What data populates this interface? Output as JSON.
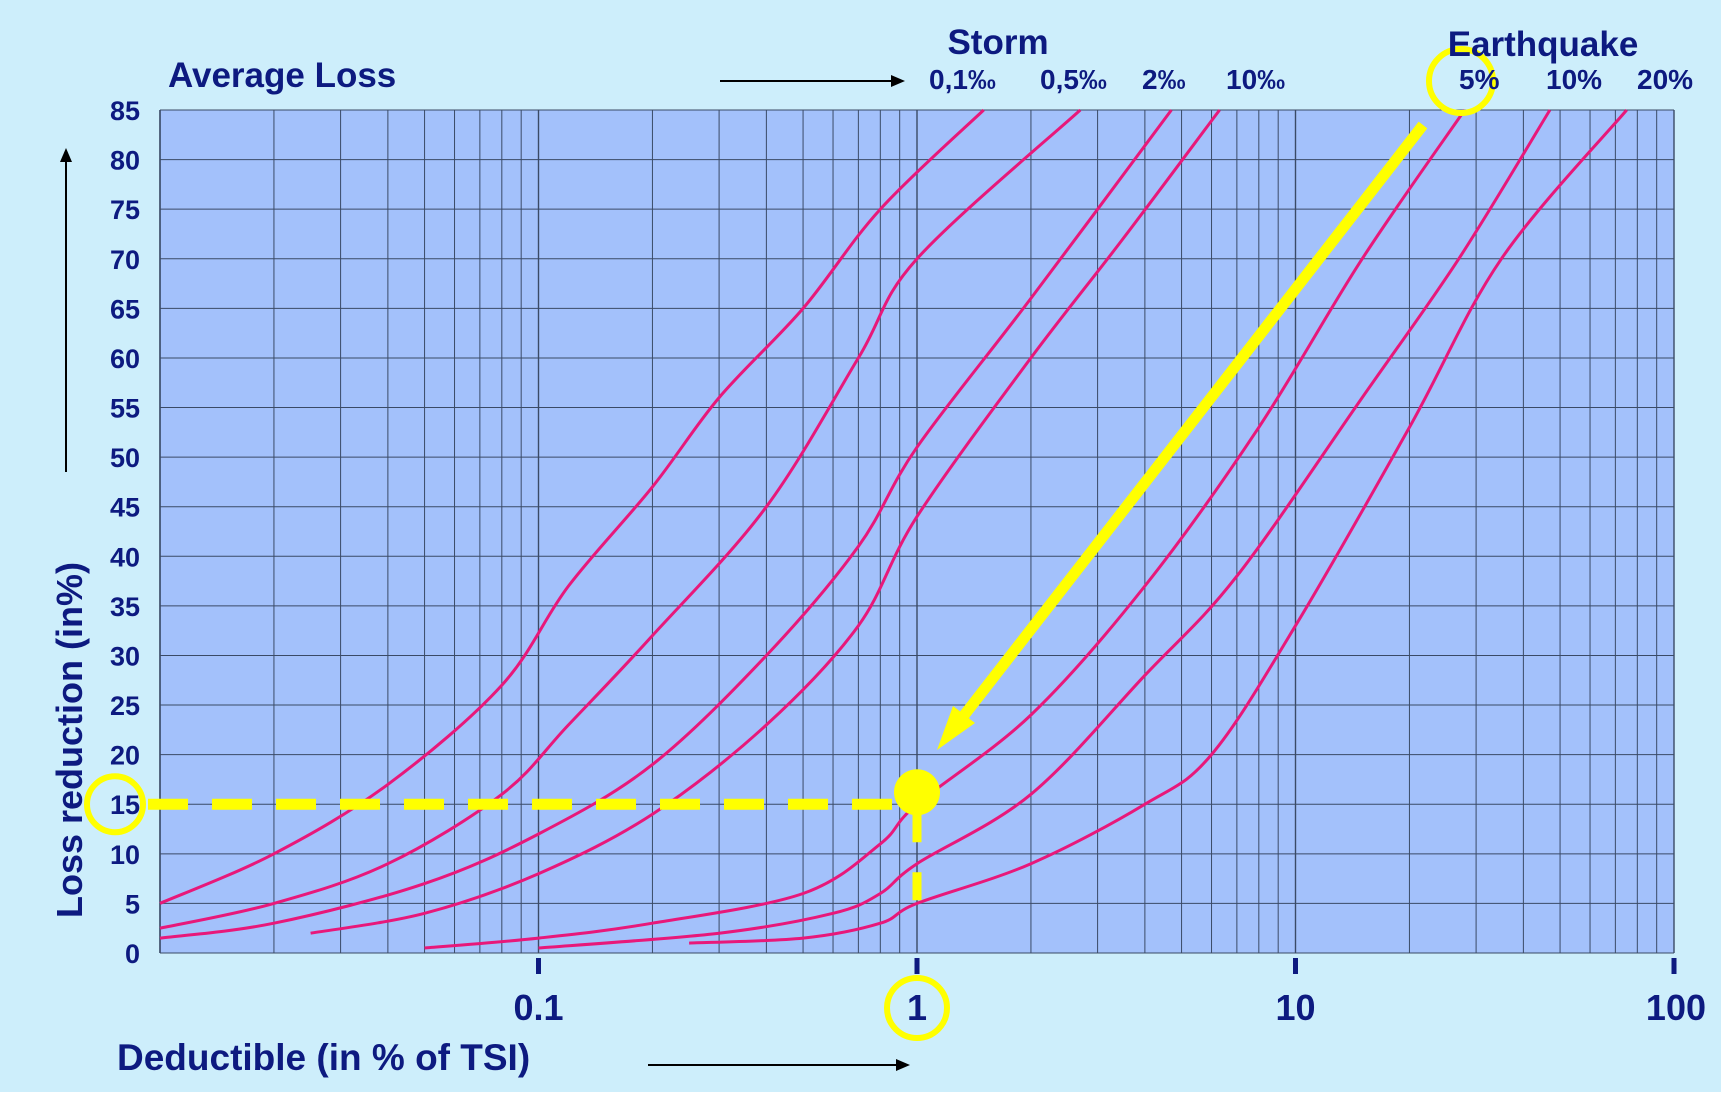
{
  "chart_data": {
    "type": "line",
    "title": "Average Loss",
    "xlabel": "Deductible (in % of TSI)",
    "ylabel": "Loss reduction (in%)",
    "x_scale": "log",
    "xlim": [
      0.01,
      100
    ],
    "ylim": [
      0,
      85
    ],
    "grid": true,
    "x_tick_labels": [
      "0.1",
      "1",
      "10",
      "100"
    ],
    "y_tick_labels": [
      "0",
      "5",
      "10",
      "15",
      "20",
      "25",
      "30",
      "35",
      "40",
      "45",
      "50",
      "55",
      "60",
      "65",
      "70",
      "75",
      "80",
      "85"
    ],
    "group_labels": {
      "storm": "Storm",
      "earthquake": "Earthquake"
    },
    "series": [
      {
        "name": "0,1‰",
        "group": "storm",
        "points": [
          [
            0.01,
            5
          ],
          [
            0.02,
            10
          ],
          [
            0.04,
            17
          ],
          [
            0.08,
            27
          ],
          [
            0.12,
            37
          ],
          [
            0.2,
            47
          ],
          [
            0.3,
            56
          ],
          [
            0.5,
            65
          ],
          [
            0.8,
            75
          ],
          [
            1.5,
            85
          ]
        ]
      },
      {
        "name": "0,5‰",
        "group": "storm",
        "points": [
          [
            0.01,
            2.5
          ],
          [
            0.02,
            5
          ],
          [
            0.04,
            9
          ],
          [
            0.08,
            16
          ],
          [
            0.12,
            23
          ],
          [
            0.2,
            32
          ],
          [
            0.4,
            45
          ],
          [
            0.7,
            60
          ],
          [
            1,
            70
          ],
          [
            2.7,
            85
          ]
        ]
      },
      {
        "name": "2‰",
        "group": "storm",
        "points": [
          [
            0.01,
            1.5
          ],
          [
            0.02,
            3
          ],
          [
            0.05,
            7
          ],
          [
            0.1,
            12
          ],
          [
            0.2,
            19
          ],
          [
            0.4,
            30
          ],
          [
            0.7,
            41
          ],
          [
            1,
            51
          ],
          [
            2,
            66
          ],
          [
            4.7,
            85
          ]
        ]
      },
      {
        "name": "10‰",
        "group": "storm",
        "points": [
          [
            0.025,
            2
          ],
          [
            0.05,
            4
          ],
          [
            0.1,
            8
          ],
          [
            0.2,
            14
          ],
          [
            0.4,
            23
          ],
          [
            0.7,
            33
          ],
          [
            1,
            44
          ],
          [
            2,
            60
          ],
          [
            3.5,
            72
          ],
          [
            6.3,
            85
          ]
        ]
      },
      {
        "name": "5%",
        "group": "earthquake",
        "points": [
          [
            0.05,
            0.5
          ],
          [
            0.1,
            1.5
          ],
          [
            0.2,
            3
          ],
          [
            0.5,
            6
          ],
          [
            0.8,
            11
          ],
          [
            1,
            15
          ],
          [
            2,
            24
          ],
          [
            4,
            37
          ],
          [
            8,
            53
          ],
          [
            15,
            70
          ],
          [
            28,
            85
          ]
        ]
      },
      {
        "name": "10%",
        "group": "earthquake",
        "points": [
          [
            0.1,
            0.5
          ],
          [
            0.3,
            2
          ],
          [
            0.6,
            4
          ],
          [
            0.8,
            6
          ],
          [
            1,
            9
          ],
          [
            2,
            16
          ],
          [
            4,
            28
          ],
          [
            7,
            38
          ],
          [
            15,
            56
          ],
          [
            27,
            70
          ],
          [
            47,
            85
          ]
        ]
      },
      {
        "name": "20%",
        "group": "earthquake",
        "points": [
          [
            0.25,
            1
          ],
          [
            0.5,
            1.5
          ],
          [
            0.8,
            3
          ],
          [
            1,
            5
          ],
          [
            2,
            9
          ],
          [
            4,
            15
          ],
          [
            6,
            20
          ],
          [
            10,
            33
          ],
          [
            20,
            53
          ],
          [
            35,
            70
          ],
          [
            75,
            85
          ]
        ]
      }
    ],
    "annotation": {
      "example_deductible": 1,
      "example_loss_reduction": 15,
      "highlighted_curve": "5%"
    },
    "colors": {
      "outer_background": "#cdeefb",
      "plot_background": "#a3c1fb",
      "curve": "#e8187a",
      "highlight": "#ffff00",
      "text": "#0d1a80",
      "grid": "#3a4a66"
    }
  }
}
